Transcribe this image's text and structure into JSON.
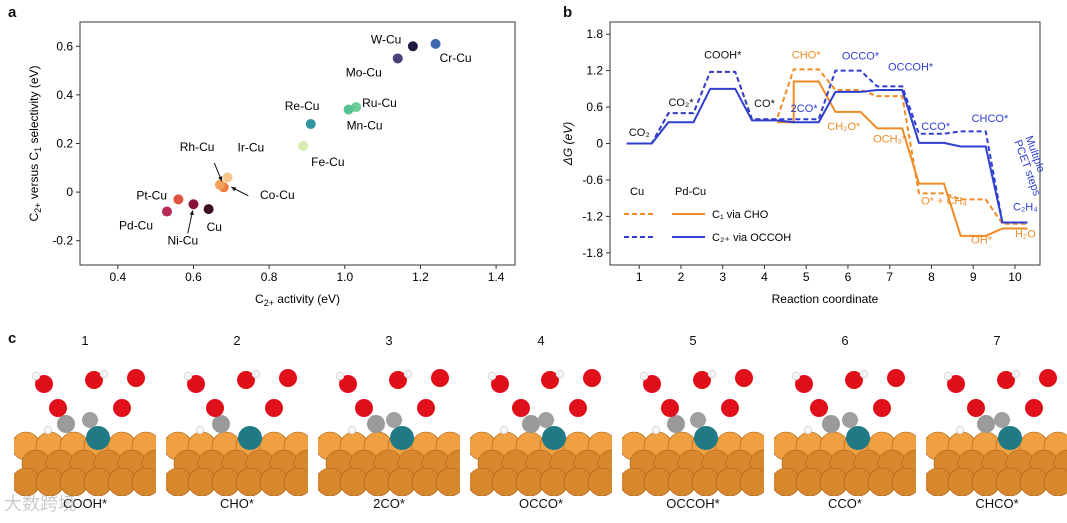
{
  "panels": {
    "a": "a",
    "b": "b",
    "c": "c"
  },
  "watermark": "大数跨境",
  "chart_data": [
    {
      "type": "scatter",
      "panel": "a",
      "xlabel": "C2+ activity (eV)",
      "ylabel": "C2+ versus C1 selectivity (eV)",
      "xlim": [
        0.3,
        1.45
      ],
      "ylim": [
        -0.3,
        0.7
      ],
      "xticks": [
        "0.4",
        "0.6",
        "0.8",
        "1.0",
        "1.2",
        "1.4"
      ],
      "yticks": [
        "-0.2",
        "0",
        "0.2",
        "0.4",
        "0.6"
      ],
      "grid": false,
      "points": [
        {
          "label": "W-Cu",
          "x": 1.18,
          "y": 0.6,
          "color": "#1e1b3d"
        },
        {
          "label": "Cr-Cu",
          "x": 1.24,
          "y": 0.61,
          "color": "#3e6bb0"
        },
        {
          "label": "Mo-Cu",
          "x": 1.14,
          "y": 0.55,
          "color": "#4b3f7c"
        },
        {
          "label": "Re-Cu",
          "x": 0.91,
          "y": 0.28,
          "color": "#3393a0"
        },
        {
          "label": "Ru-Cu",
          "x": 1.03,
          "y": 0.35,
          "color": "#6ccf9a"
        },
        {
          "label": "Mn-Cu",
          "x": 1.01,
          "y": 0.34,
          "color": "#56c28f"
        },
        {
          "label": "Fe-Cu",
          "x": 0.89,
          "y": 0.19,
          "color": "#d7ecb0"
        },
        {
          "label": "Rh-Cu",
          "x": 0.68,
          "y": 0.02,
          "color": "#ef7b3b"
        },
        {
          "label": "Ir-Cu",
          "x": 0.69,
          "y": 0.06,
          "color": "#f6c58a"
        },
        {
          "label": "Co-Cu",
          "x": 0.67,
          "y": 0.03,
          "color": "#f5a05a"
        },
        {
          "label": "Pt-Cu",
          "x": 0.56,
          "y": -0.03,
          "color": "#e25240"
        },
        {
          "label": "Pd-Cu",
          "x": 0.53,
          "y": -0.08,
          "color": "#b62a54"
        },
        {
          "label": "Ni-Cu",
          "x": 0.6,
          "y": -0.05,
          "color": "#8a1238"
        },
        {
          "label": "Cu",
          "x": 0.64,
          "y": -0.07,
          "color": "#3b0c22"
        }
      ]
    },
    {
      "type": "line",
      "panel": "b",
      "xlabel": "Reaction coordinate",
      "ylabel": "ΔG (eV)",
      "xlim": [
        0.3,
        10.6
      ],
      "ylim": [
        -2.0,
        2.0
      ],
      "xticks": [
        "1",
        "2",
        "3",
        "4",
        "5",
        "6",
        "7",
        "8",
        "9",
        "10"
      ],
      "yticks": [
        "1.8",
        "1.2",
        "0.6",
        "0",
        "-0.6",
        "-1.2",
        "-1.8"
      ],
      "grid": false,
      "legend_headers": [
        "Cu",
        "Pd-Cu"
      ],
      "series": [
        {
          "name": "C1 via CHO",
          "metal": "Cu",
          "color": "#ee8c26",
          "dashed": true,
          "levels": [
            [
              0.7,
              1.3,
              0
            ],
            [
              1.7,
              2.3,
              0.5
            ],
            [
              2.7,
              3.3,
              1.18
            ],
            [
              3.7,
              4.3,
              0.4
            ],
            [
              4.7,
              5.3,
              1.22
            ],
            [
              5.7,
              6.3,
              0.88
            ],
            [
              6.7,
              7.3,
              0.78
            ],
            [
              7.7,
              8.3,
              -0.82
            ],
            [
              8.7,
              9.3,
              -0.92
            ],
            [
              9.7,
              10.3,
              -1.32
            ]
          ]
        },
        {
          "name": "C1 via CHO",
          "metal": "Pd-Cu",
          "color": "#ee8c26",
          "dashed": false,
          "levels": [
            [
              4.3,
              4.7,
              0.35
            ],
            [
              4.7,
              5.3,
              1.02
            ],
            [
              5.7,
              6.3,
              0.52
            ],
            [
              6.7,
              7.3,
              0.25
            ],
            [
              7.7,
              8.3,
              -0.66
            ],
            [
              8.7,
              9.3,
              -1.52
            ],
            [
              9.7,
              10.3,
              -1.4
            ]
          ]
        },
        {
          "name": "C2+ via OCCOH",
          "metal": "Cu",
          "color": "#2f3fd0",
          "dashed": true,
          "levels": [
            [
              0.7,
              1.3,
              0
            ],
            [
              1.7,
              2.3,
              0.5
            ],
            [
              2.7,
              3.3,
              1.18
            ],
            [
              3.7,
              4.3,
              0.4
            ],
            [
              4.7,
              5.3,
              0.4
            ],
            [
              5.7,
              6.3,
              1.2
            ],
            [
              6.7,
              7.3,
              0.94
            ],
            [
              7.7,
              8.3,
              0.16
            ],
            [
              8.7,
              9.3,
              0.2
            ],
            [
              9.7,
              10.3,
              -1.3
            ]
          ]
        },
        {
          "name": "C2+ via OCCOH",
          "metal": "Pd-Cu",
          "color": "#2f3fd0",
          "dashed": false,
          "levels": [
            [
              0.7,
              1.3,
              0
            ],
            [
              1.7,
              2.3,
              0.35
            ],
            [
              2.7,
              3.3,
              0.9
            ],
            [
              3.7,
              4.3,
              0.38
            ],
            [
              4.7,
              5.3,
              0.35
            ],
            [
              5.7,
              6.3,
              0.85
            ],
            [
              6.7,
              7.3,
              0.88
            ],
            [
              7.7,
              8.3,
              0.01
            ],
            [
              8.7,
              9.3,
              -0.05
            ],
            [
              9.7,
              10.3,
              -1.3
            ]
          ]
        }
      ],
      "annotations": [
        {
          "text": "CO₂",
          "x": 1.0,
          "y": 0.12,
          "color": "#111"
        },
        {
          "text": "CO₂*",
          "x": 2.0,
          "y": 0.62,
          "color": "#111"
        },
        {
          "text": "COOH*",
          "x": 3.0,
          "y": 1.4,
          "color": "#111"
        },
        {
          "text": "CO*",
          "x": 4.0,
          "y": 0.6,
          "color": "#111"
        },
        {
          "text": "2CO*",
          "x": 4.95,
          "y": 0.52,
          "color": "#2f3fd0"
        },
        {
          "text": "CHO*",
          "x": 5.0,
          "y": 1.4,
          "color": "#ee8c26"
        },
        {
          "text": "OCCO*",
          "x": 6.3,
          "y": 1.38,
          "color": "#2f3fd0"
        },
        {
          "text": "OCCOH*",
          "x": 7.5,
          "y": 1.2,
          "color": "#2f3fd0"
        },
        {
          "text": "CH₂O*",
          "x": 5.9,
          "y": 0.22,
          "color": "#ee8c26"
        },
        {
          "text": "OCH₃*",
          "x": 7.0,
          "y": 0.02,
          "color": "#ee8c26"
        },
        {
          "text": "CCO*",
          "x": 8.1,
          "y": 0.22,
          "color": "#2f3fd0"
        },
        {
          "text": "CHCO*",
          "x": 9.4,
          "y": 0.35,
          "color": "#2f3fd0"
        },
        {
          "text": "O* + CH₄",
          "x": 8.3,
          "y": -1.0,
          "color": "#ee8c26"
        },
        {
          "text": "OH*",
          "x": 9.2,
          "y": -1.65,
          "color": "#ee8c26"
        },
        {
          "text": "H₂O",
          "x": 10.25,
          "y": -1.55,
          "color": "#ee8c26"
        },
        {
          "text": "C₂H₄",
          "x": 10.25,
          "y": -1.1,
          "color": "#2f3fd0"
        }
      ],
      "side_note": [
        "Multiple",
        "PCET steps"
      ],
      "legend": [
        {
          "label": "C₁ via CHO",
          "color": "#ee8c26"
        },
        {
          "label": "C₂₊ via OCCOH",
          "color": "#2f3fd0"
        }
      ]
    }
  ],
  "snapshots": {
    "numbers": [
      "1",
      "2",
      "3",
      "4",
      "5",
      "6",
      "7"
    ],
    "labels": [
      "COOH*",
      "CHO*",
      "2CO*",
      "OCCO*",
      "OCCOH*",
      "CCO*",
      "CHCO*"
    ]
  }
}
